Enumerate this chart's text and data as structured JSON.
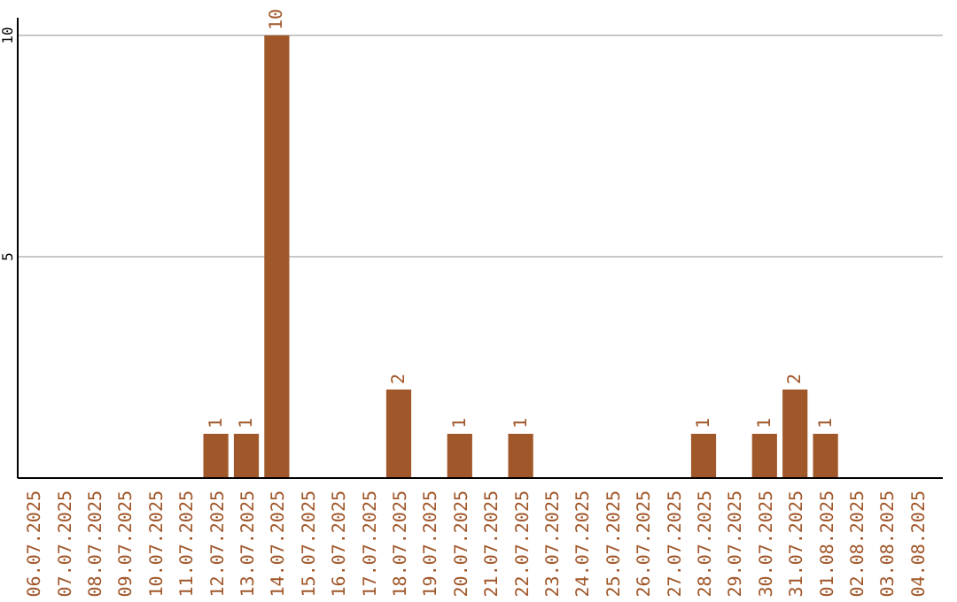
{
  "chart_data": {
    "type": "bar",
    "categories": [
      "06.07.2025",
      "07.07.2025",
      "08.07.2025",
      "09.07.2025",
      "10.07.2025",
      "11.07.2025",
      "12.07.2025",
      "13.07.2025",
      "14.07.2025",
      "15.07.2025",
      "16.07.2025",
      "17.07.2025",
      "18.07.2025",
      "19.07.2025",
      "20.07.2025",
      "21.07.2025",
      "22.07.2025",
      "23.07.2025",
      "24.07.2025",
      "25.07.2025",
      "26.07.2025",
      "27.07.2025",
      "28.07.2025",
      "29.07.2025",
      "30.07.2025",
      "31.07.2025",
      "01.08.2025",
      "02.08.2025",
      "03.08.2025",
      "04.08.2025"
    ],
    "values": [
      0,
      0,
      0,
      0,
      0,
      0,
      1,
      1,
      10,
      0,
      0,
      0,
      2,
      0,
      1,
      0,
      1,
      0,
      0,
      0,
      0,
      0,
      1,
      0,
      1,
      2,
      1,
      0,
      0,
      0
    ],
    "value_labels": [
      null,
      null,
      null,
      null,
      null,
      null,
      "1",
      "1",
      "10",
      null,
      null,
      null,
      "2",
      null,
      "1",
      null,
      "1",
      null,
      null,
      null,
      null,
      null,
      "1",
      null,
      "1",
      "2",
      "1",
      null,
      null,
      null
    ],
    "color": "#a0572a",
    "ylim": [
      0,
      10.4
    ],
    "yticks": [
      5,
      10
    ],
    "grid": "y"
  }
}
